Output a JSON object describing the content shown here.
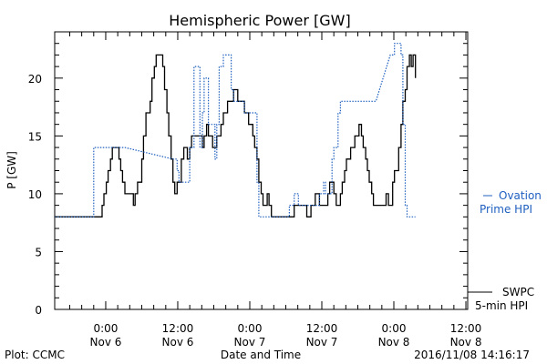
{
  "chart_data": {
    "type": "line",
    "title": "Hemispheric Power [GW]",
    "xlabel": "Date and Time",
    "ylabel": "P [GW]",
    "ylim": [
      0,
      24
    ],
    "y_ticks": [
      0,
      5,
      10,
      15,
      20
    ],
    "x_unit": "hours since 2016-11-05 00:00 UT",
    "xlim": [
      15.5,
      84.3
    ],
    "x_ticks": [
      {
        "x": 24,
        "time": "0:00",
        "date": "Nov 6"
      },
      {
        "x": 36,
        "time": "12:00",
        "date": "Nov 6"
      },
      {
        "x": 48,
        "time": "0:00",
        "date": "Nov 7"
      },
      {
        "x": 60,
        "time": "12:00",
        "date": "Nov 7"
      },
      {
        "x": 72,
        "time": "0:00",
        "date": "Nov 8"
      },
      {
        "x": 84,
        "time": "12:00",
        "date": "Nov 8"
      }
    ],
    "footer_left": "Plot: CCMC",
    "footer_right": "2016/11/08 14:16:17",
    "series": [
      {
        "name": "SWPC 5-min HPI",
        "legend_line1": "SWPC",
        "legend_line2": "5-min HPI",
        "color": "#000000",
        "style": "solid",
        "points": [
          [
            15.5,
            8
          ],
          [
            23.4,
            8
          ],
          [
            23.4,
            9
          ],
          [
            23.7,
            9
          ],
          [
            23.7,
            10
          ],
          [
            24.1,
            10
          ],
          [
            24.1,
            11
          ],
          [
            24.4,
            11
          ],
          [
            24.4,
            12
          ],
          [
            24.8,
            12
          ],
          [
            24.8,
            13
          ],
          [
            25.1,
            13
          ],
          [
            25.1,
            14
          ],
          [
            26.2,
            14
          ],
          [
            26.2,
            13
          ],
          [
            26.5,
            13
          ],
          [
            26.5,
            12
          ],
          [
            26.8,
            12
          ],
          [
            26.8,
            11
          ],
          [
            27.2,
            11
          ],
          [
            27.2,
            10
          ],
          [
            28.6,
            10
          ],
          [
            28.6,
            9
          ],
          [
            28.9,
            9
          ],
          [
            28.9,
            10
          ],
          [
            29.3,
            10
          ],
          [
            29.3,
            11
          ],
          [
            30.0,
            11
          ],
          [
            30.0,
            13
          ],
          [
            30.3,
            13
          ],
          [
            30.3,
            15
          ],
          [
            30.7,
            15
          ],
          [
            30.7,
            17
          ],
          [
            31.4,
            17
          ],
          [
            31.4,
            18
          ],
          [
            31.7,
            18
          ],
          [
            31.7,
            20
          ],
          [
            32.1,
            20
          ],
          [
            32.1,
            21
          ],
          [
            32.4,
            21
          ],
          [
            32.4,
            22
          ],
          [
            33.5,
            22
          ],
          [
            33.5,
            21
          ],
          [
            33.8,
            21
          ],
          [
            33.8,
            19
          ],
          [
            34.2,
            19
          ],
          [
            34.2,
            17
          ],
          [
            34.5,
            17
          ],
          [
            34.5,
            15
          ],
          [
            34.9,
            15
          ],
          [
            34.9,
            13
          ],
          [
            35.2,
            13
          ],
          [
            35.2,
            11
          ],
          [
            35.5,
            11
          ],
          [
            35.5,
            10
          ],
          [
            35.9,
            10
          ],
          [
            35.9,
            11
          ],
          [
            36.6,
            11
          ],
          [
            36.6,
            13
          ],
          [
            37.0,
            13
          ],
          [
            37.0,
            14
          ],
          [
            37.6,
            14
          ],
          [
            37.6,
            13
          ],
          [
            38.0,
            13
          ],
          [
            38.0,
            14
          ],
          [
            38.3,
            14
          ],
          [
            38.3,
            15
          ],
          [
            40.1,
            15
          ],
          [
            40.1,
            14
          ],
          [
            40.4,
            14
          ],
          [
            40.4,
            15
          ],
          [
            40.8,
            15
          ],
          [
            40.8,
            16
          ],
          [
            41.1,
            16
          ],
          [
            41.1,
            15
          ],
          [
            41.8,
            15
          ],
          [
            41.8,
            14
          ],
          [
            42.5,
            14
          ],
          [
            42.5,
            15
          ],
          [
            43.2,
            15
          ],
          [
            43.2,
            16
          ],
          [
            43.6,
            16
          ],
          [
            43.6,
            17
          ],
          [
            44.3,
            17
          ],
          [
            44.3,
            18
          ],
          [
            45.3,
            18
          ],
          [
            45.3,
            19
          ],
          [
            46.0,
            19
          ],
          [
            46.0,
            18
          ],
          [
            47.1,
            18
          ],
          [
            47.1,
            17
          ],
          [
            47.8,
            17
          ],
          [
            47.8,
            16
          ],
          [
            48.5,
            16
          ],
          [
            48.5,
            15
          ],
          [
            48.8,
            15
          ],
          [
            48.8,
            14
          ],
          [
            49.2,
            14
          ],
          [
            49.2,
            13
          ],
          [
            49.5,
            13
          ],
          [
            49.5,
            11
          ],
          [
            49.9,
            11
          ],
          [
            49.9,
            10
          ],
          [
            50.2,
            10
          ],
          [
            50.2,
            9
          ],
          [
            50.9,
            9
          ],
          [
            50.9,
            10
          ],
          [
            51.2,
            10
          ],
          [
            51.2,
            9
          ],
          [
            51.6,
            9
          ],
          [
            51.6,
            8
          ],
          [
            55.4,
            8
          ],
          [
            55.4,
            9
          ],
          [
            57.5,
            9
          ],
          [
            57.5,
            8
          ],
          [
            58.2,
            8
          ],
          [
            58.2,
            9
          ],
          [
            58.9,
            9
          ],
          [
            58.9,
            10
          ],
          [
            59.6,
            10
          ],
          [
            59.6,
            9
          ],
          [
            61.0,
            9
          ],
          [
            61.0,
            10
          ],
          [
            61.3,
            10
          ],
          [
            61.3,
            11
          ],
          [
            62.0,
            11
          ],
          [
            62.0,
            10
          ],
          [
            62.4,
            10
          ],
          [
            62.4,
            9
          ],
          [
            63.1,
            9
          ],
          [
            63.1,
            10
          ],
          [
            63.4,
            10
          ],
          [
            63.4,
            11
          ],
          [
            63.8,
            11
          ],
          [
            63.8,
            12
          ],
          [
            64.1,
            12
          ],
          [
            64.1,
            13
          ],
          [
            64.8,
            13
          ],
          [
            64.8,
            14
          ],
          [
            65.5,
            14
          ],
          [
            65.5,
            15
          ],
          [
            66.2,
            15
          ],
          [
            66.2,
            16
          ],
          [
            66.6,
            16
          ],
          [
            66.6,
            15
          ],
          [
            66.9,
            15
          ],
          [
            66.9,
            14
          ],
          [
            67.3,
            14
          ],
          [
            67.3,
            13
          ],
          [
            67.6,
            13
          ],
          [
            67.6,
            12
          ],
          [
            67.9,
            12
          ],
          [
            67.9,
            11
          ],
          [
            68.3,
            11
          ],
          [
            68.3,
            10
          ],
          [
            68.6,
            10
          ],
          [
            68.6,
            9
          ],
          [
            70.7,
            9
          ],
          [
            70.7,
            10
          ],
          [
            71.1,
            10
          ],
          [
            71.1,
            9
          ],
          [
            71.8,
            9
          ],
          [
            71.8,
            11
          ],
          [
            72.1,
            11
          ],
          [
            72.1,
            12
          ],
          [
            72.8,
            12
          ],
          [
            72.8,
            14
          ],
          [
            73.2,
            14
          ],
          [
            73.2,
            16
          ],
          [
            73.5,
            16
          ],
          [
            73.5,
            18
          ],
          [
            73.9,
            18
          ],
          [
            73.9,
            19
          ],
          [
            74.2,
            19
          ],
          [
            74.2,
            21
          ],
          [
            74.6,
            21
          ],
          [
            74.6,
            22
          ],
          [
            74.9,
            22
          ],
          [
            74.9,
            21
          ],
          [
            75.2,
            21
          ],
          [
            75.2,
            22
          ],
          [
            75.6,
            22
          ],
          [
            75.6,
            20
          ]
        ]
      },
      {
        "name": "Ovation Prime HPI",
        "legend_line1": "Ovation",
        "legend_line2": "Prime HPI",
        "color": "#2060c0",
        "style": "dotted",
        "points": [
          [
            15.5,
            8
          ],
          [
            22.0,
            8
          ],
          [
            22.0,
            14
          ],
          [
            24.8,
            14
          ],
          [
            27.2,
            14
          ],
          [
            35.2,
            13
          ],
          [
            35.9,
            13
          ],
          [
            35.9,
            12
          ],
          [
            36.2,
            12
          ],
          [
            36.2,
            11
          ],
          [
            38.0,
            11
          ],
          [
            38.0,
            14
          ],
          [
            38.7,
            14
          ],
          [
            38.7,
            21
          ],
          [
            39.7,
            21
          ],
          [
            39.7,
            14
          ],
          [
            40.1,
            14
          ],
          [
            40.1,
            17
          ],
          [
            40.4,
            17
          ],
          [
            40.4,
            20
          ],
          [
            41.1,
            20
          ],
          [
            41.1,
            16
          ],
          [
            42.2,
            16
          ],
          [
            42.2,
            13
          ],
          [
            42.5,
            13
          ],
          [
            42.5,
            16
          ],
          [
            42.9,
            16
          ],
          [
            42.9,
            21
          ],
          [
            43.6,
            21
          ],
          [
            43.6,
            22
          ],
          [
            44.9,
            22
          ],
          [
            44.9,
            19
          ],
          [
            45.3,
            19
          ],
          [
            45.3,
            18
          ],
          [
            47.1,
            18
          ],
          [
            47.1,
            17
          ],
          [
            49.2,
            17
          ],
          [
            49.2,
            11
          ],
          [
            49.5,
            11
          ],
          [
            49.5,
            8
          ],
          [
            54.6,
            8
          ],
          [
            54.6,
            9
          ],
          [
            55.4,
            9
          ],
          [
            55.4,
            10
          ],
          [
            56.1,
            10
          ],
          [
            56.1,
            9
          ],
          [
            59.6,
            9
          ],
          [
            59.6,
            10
          ],
          [
            60.3,
            10
          ],
          [
            60.3,
            11
          ],
          [
            60.6,
            11
          ],
          [
            60.6,
            10
          ],
          [
            61.7,
            10
          ],
          [
            61.7,
            13
          ],
          [
            62.0,
            13
          ],
          [
            62.0,
            14
          ],
          [
            62.7,
            14
          ],
          [
            62.7,
            17
          ],
          [
            63.1,
            17
          ],
          [
            63.1,
            18
          ],
          [
            63.4,
            18
          ],
          [
            69.0,
            18
          ],
          [
            71.4,
            22
          ],
          [
            72.1,
            22
          ],
          [
            72.1,
            23
          ],
          [
            73.2,
            23
          ],
          [
            73.2,
            22
          ],
          [
            73.5,
            22
          ],
          [
            73.5,
            16
          ],
          [
            73.9,
            16
          ],
          [
            73.9,
            9
          ],
          [
            74.2,
            9
          ],
          [
            74.2,
            8
          ],
          [
            75.6,
            8
          ]
        ]
      }
    ]
  }
}
